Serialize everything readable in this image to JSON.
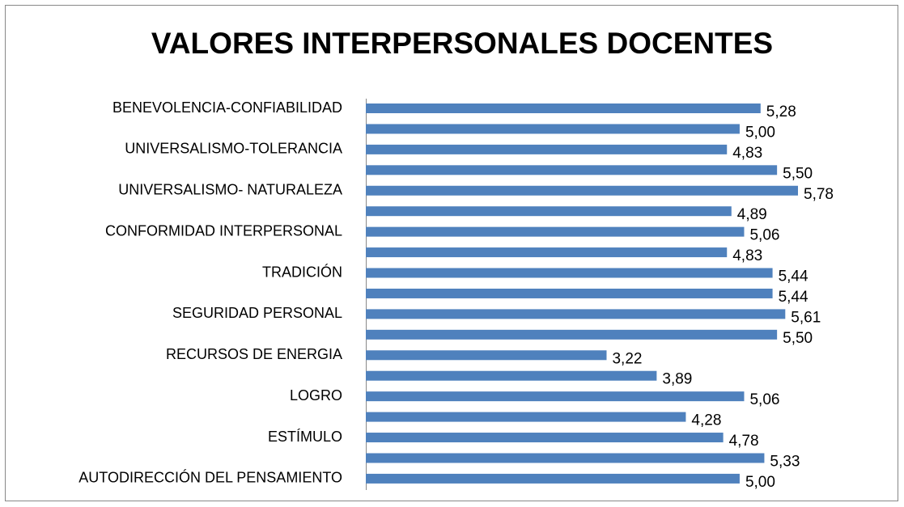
{
  "chart_data": {
    "type": "bar",
    "orientation": "horizontal",
    "title": "VALORES INTERPERSONALES DOCENTES",
    "categories": [
      "BENEVOLENCIA-CONFIABILIDAD",
      null,
      "UNIVERSALISMO-TOLERANCIA",
      null,
      "UNIVERSALISMO- NATURALEZA",
      null,
      "CONFORMIDAD INTERPERSONAL",
      null,
      "TRADICIÓN",
      null,
      "SEGURIDAD PERSONAL",
      null,
      "RECURSOS DE ENERGIA",
      null,
      "LOGRO",
      null,
      "ESTÍMULO",
      null,
      "AUTODIRECCIÓN DEL PENSAMIENTO"
    ],
    "values": [
      5.28,
      5.0,
      4.83,
      5.5,
      5.78,
      4.89,
      5.06,
      4.83,
      5.44,
      5.44,
      5.61,
      5.5,
      3.22,
      3.89,
      5.06,
      4.28,
      4.78,
      5.33,
      5.0
    ],
    "value_labels": [
      "5,28",
      "5,00",
      "4,83",
      "5,50",
      "5,78",
      "4,89",
      "5,06",
      "4,83",
      "5,44",
      "5,44",
      "5,61",
      "5,50",
      "3,22",
      "3,89",
      "5,06",
      "4,28",
      "4,78",
      "5,33",
      "5,00"
    ],
    "color": "#4f81bd"
  }
}
